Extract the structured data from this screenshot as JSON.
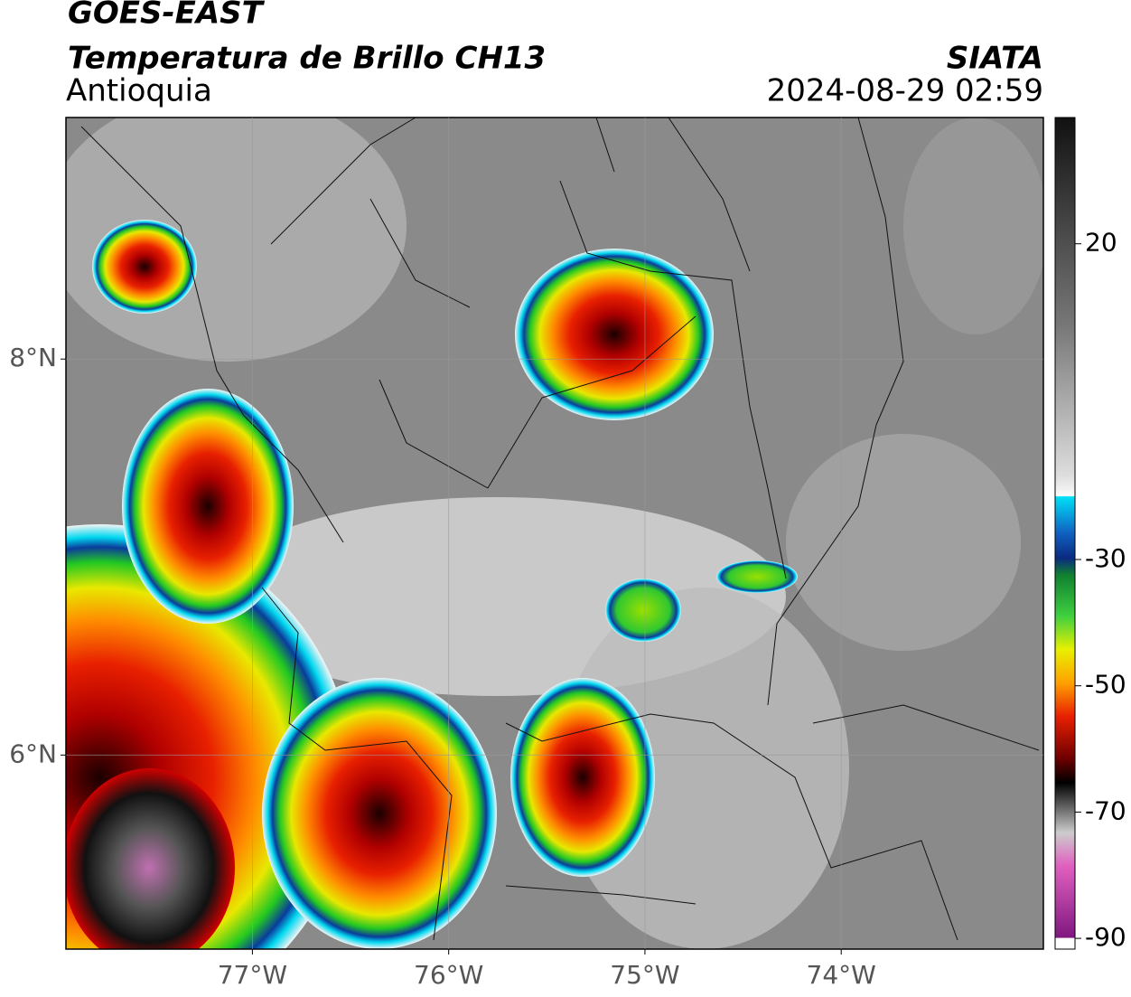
{
  "header": {
    "title": "GOES-EAST",
    "subtitle": "Temperatura de Brillo CH13",
    "region": "Antioquia",
    "source": "SIATA",
    "datetime": "2024-08-29 02:59"
  },
  "map": {
    "xlim": [
      -77.95,
      -72.97
    ],
    "ylim": [
      5.02,
      9.22
    ],
    "xticks": [
      {
        "value": -77,
        "label": "77°W"
      },
      {
        "value": -76,
        "label": "76°W"
      },
      {
        "value": -75,
        "label": "75°W"
      },
      {
        "value": -74,
        "label": "74°W"
      }
    ],
    "yticks": [
      {
        "value": 6,
        "label": "6°N"
      },
      {
        "value": 8,
        "label": "8°N"
      }
    ],
    "grid": true
  },
  "colorbar": {
    "lim": [
      -91.7,
      40
    ],
    "ticks": [
      20,
      -30,
      -50,
      -70,
      -90
    ]
  }
}
